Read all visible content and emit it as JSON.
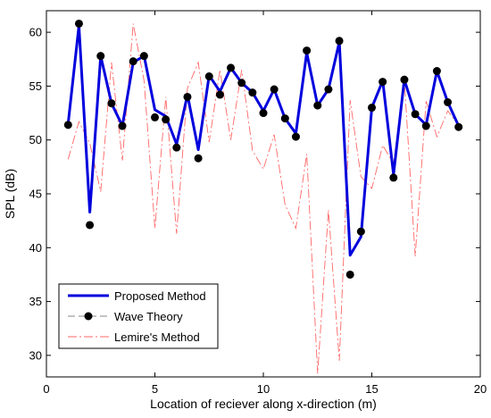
{
  "chart_data": {
    "type": "line",
    "title": "",
    "xlabel": "Location of reciever along x-direction (m)",
    "ylabel": "SPL (dB)",
    "xlim": [
      0,
      20
    ],
    "ylim": [
      28,
      62
    ],
    "x_ticks": [
      0,
      5,
      10,
      15,
      20
    ],
    "y_ticks": [
      30,
      35,
      40,
      45,
      50,
      55,
      60
    ],
    "grid": false,
    "legend_position": "bottom-left",
    "series": [
      {
        "name": "Proposed Method",
        "style": "solid-thick",
        "color": "#0000dd",
        "x": [
          1,
          1.5,
          2,
          2.5,
          3,
          3.5,
          4,
          4.5,
          5,
          5.5,
          6,
          6.5,
          7,
          7.5,
          8,
          8.5,
          9,
          9.5,
          10,
          10.5,
          11,
          11.5,
          12,
          12.5,
          13,
          13.5,
          14,
          14.5,
          15,
          15.5,
          16,
          16.5,
          17,
          17.5,
          18,
          18.5,
          19
        ],
        "y": [
          51.5,
          60.6,
          43.3,
          57.8,
          53.4,
          51.3,
          57.2,
          57.8,
          52.8,
          52.2,
          49.6,
          54.2,
          49.1,
          56.0,
          54.5,
          56.7,
          55.3,
          54.4,
          52.7,
          54.7,
          52.0,
          50.6,
          58.1,
          53.2,
          54.7,
          59.1,
          39.3,
          41.0,
          53.0,
          55.5,
          46.8,
          55.6,
          52.4,
          51.4,
          56.4,
          53.5,
          51.3
        ]
      },
      {
        "name": "Wave Theory",
        "style": "markers",
        "color": "#000000",
        "x": [
          1,
          1.5,
          2,
          2.5,
          3,
          3.5,
          4,
          4.5,
          5,
          5.5,
          6,
          6.5,
          7,
          7.5,
          8,
          8.5,
          9,
          9.5,
          10,
          10.5,
          11,
          11.5,
          12,
          12.5,
          13,
          13.5,
          14,
          14.5,
          15,
          15.5,
          16,
          16.5,
          17,
          17.5,
          18,
          18.5,
          19
        ],
        "y": [
          51.4,
          60.8,
          42.1,
          57.8,
          53.4,
          51.3,
          57.3,
          57.8,
          52.1,
          51.9,
          49.3,
          54.0,
          48.3,
          55.9,
          54.2,
          56.7,
          55.3,
          54.4,
          52.5,
          54.7,
          52.0,
          50.3,
          58.3,
          53.2,
          54.7,
          59.2,
          37.5,
          41.5,
          53.0,
          55.4,
          46.5,
          55.6,
          52.4,
          51.3,
          56.4,
          53.5,
          51.2
        ]
      },
      {
        "name": "Lemire's Method",
        "style": "dash-dot-thin",
        "color": "#ff6666",
        "x": [
          1,
          1.5,
          2,
          2.5,
          3,
          3.5,
          4,
          4.5,
          5,
          5.5,
          6,
          6.5,
          7,
          7.5,
          8,
          8.5,
          9,
          9.5,
          10,
          10.5,
          11,
          11.5,
          12,
          12.5,
          13,
          13.5,
          14,
          14.5,
          15,
          15.5,
          16,
          16.5,
          17,
          17.5,
          18,
          18.5,
          19
        ],
        "y": [
          48.2,
          51.7,
          49.7,
          45.2,
          57.2,
          48.1,
          60.8,
          55.5,
          41.8,
          54.0,
          41.3,
          54.8,
          57.2,
          49.8,
          56.5,
          50.0,
          56.5,
          49.0,
          47.3,
          50.5,
          44.0,
          41.8,
          48.7,
          28.3,
          43.5,
          29.5,
          53.7,
          46.6,
          45.5,
          49.5,
          47.8,
          55.6,
          39.2,
          53.6,
          50.3,
          52.7,
          51.4
        ]
      }
    ]
  }
}
